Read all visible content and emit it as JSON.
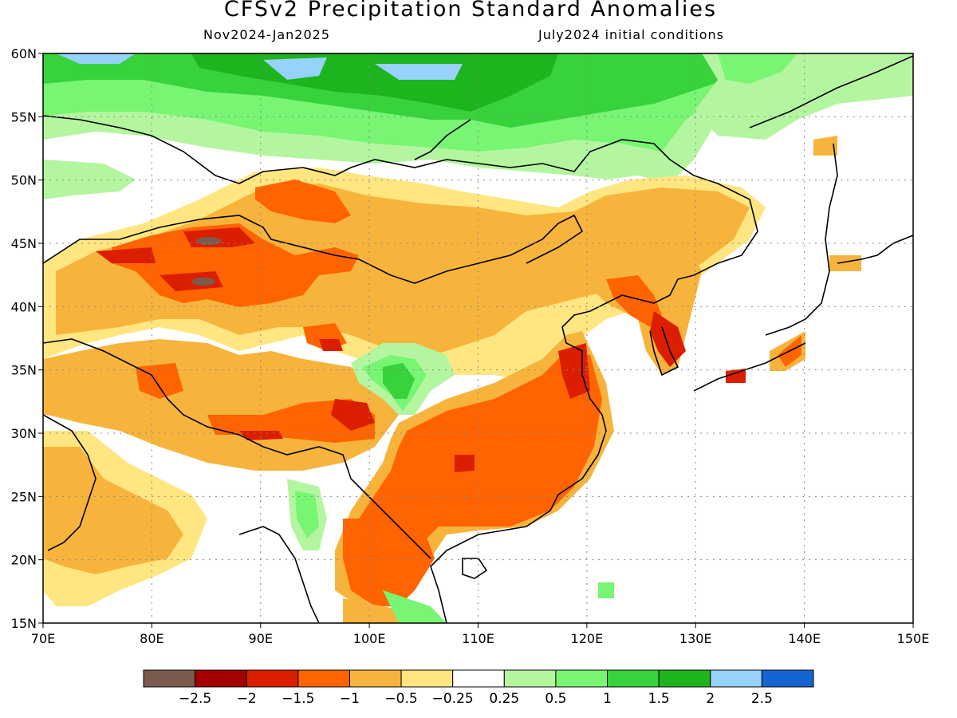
{
  "header": {
    "title": "CFSv2 Precipitation Standard Anomalies",
    "period": "Nov2024-Jan2025",
    "init": "July2024 initial conditions"
  },
  "map": {
    "lon_range": [
      70,
      150
    ],
    "lat_range": [
      15,
      60
    ],
    "lon_ticks": [
      "70E",
      "80E",
      "90E",
      "100E",
      "110E",
      "120E",
      "130E",
      "140E",
      "150E"
    ],
    "lat_ticks": [
      "60N",
      "55N",
      "50N",
      "45N",
      "40N",
      "35N",
      "30N",
      "25N",
      "20N",
      "15N"
    ]
  },
  "colorbar": {
    "colors": [
      "#7b5b4e",
      "#a50000",
      "#dc1e00",
      "#ff6400",
      "#f7b43c",
      "#ffe680",
      "#ffffff",
      "#b4f5a0",
      "#78f573",
      "#37d23c",
      "#1eb41e",
      "#96d2fa",
      "#1464d2"
    ],
    "labels": [
      "−2.5",
      "−2",
      "−1.5",
      "−1",
      "−0.5",
      "−0.25",
      "0.25",
      "0.5",
      "1",
      "1.5",
      "2",
      "2.5"
    ]
  }
}
